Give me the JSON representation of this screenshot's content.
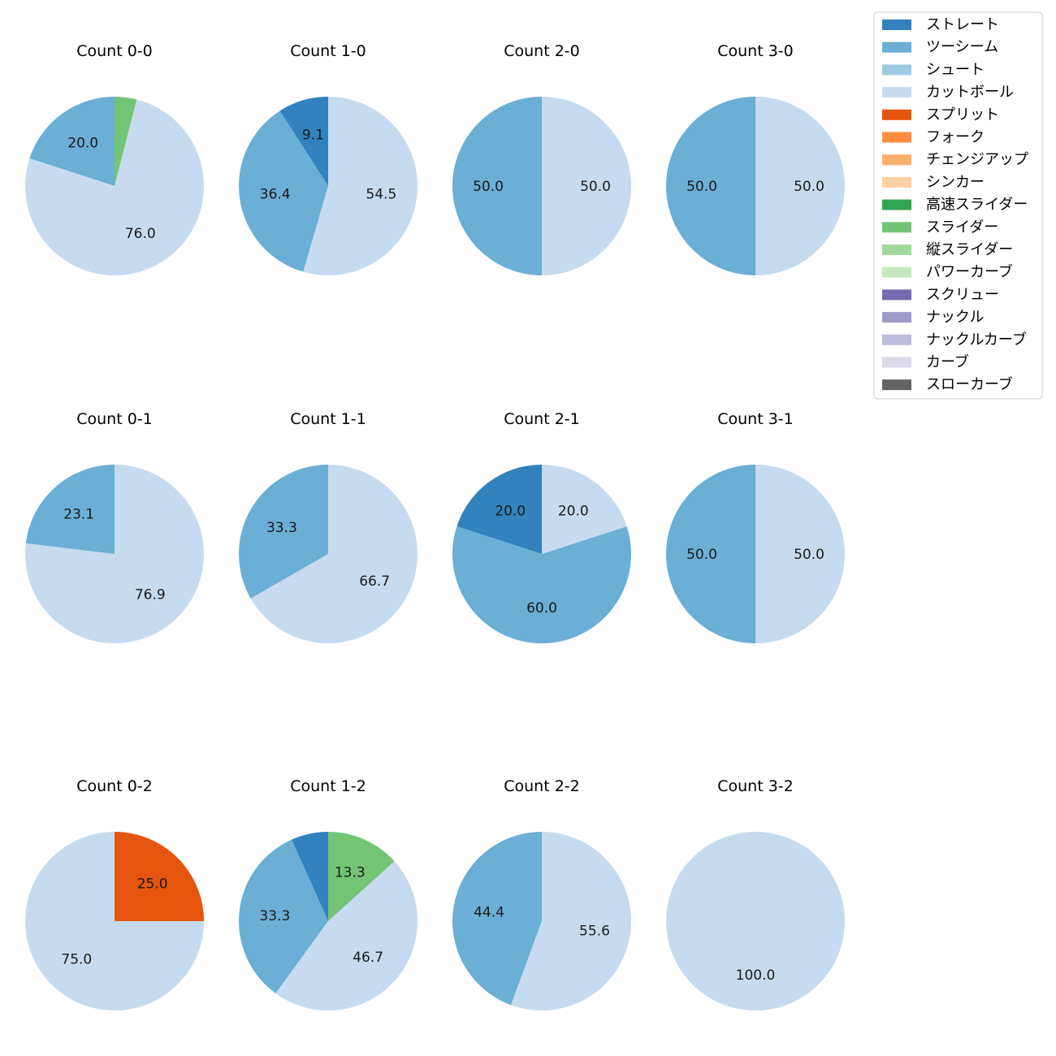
{
  "chart_data": {
    "type": "pie",
    "legend": {
      "placement": "top-right",
      "items": [
        {
          "name": "ストレート",
          "color": "#3182bd"
        },
        {
          "name": "ツーシーム",
          "color": "#6baed6"
        },
        {
          "name": "シュート",
          "color": "#9ecae1"
        },
        {
          "name": "カットボール",
          "color": "#c6dbef"
        },
        {
          "name": "スプリット",
          "color": "#e6550d"
        },
        {
          "name": "フォーク",
          "color": "#fd8d3c"
        },
        {
          "name": "チェンジアップ",
          "color": "#fdae6b"
        },
        {
          "name": "シンカー",
          "color": "#fdd0a2"
        },
        {
          "name": "高速スライダー",
          "color": "#31a354"
        },
        {
          "name": "スライダー",
          "color": "#74c476"
        },
        {
          "name": "縦スライダー",
          "color": "#a1d99b"
        },
        {
          "name": "パワーカーブ",
          "color": "#c7e9c0"
        },
        {
          "name": "スクリュー",
          "color": "#756bb1"
        },
        {
          "name": "ナックル",
          "color": "#9e9ac8"
        },
        {
          "name": "ナックルカーブ",
          "color": "#bcbddc"
        },
        {
          "name": "カーブ",
          "color": "#dadaeb"
        },
        {
          "name": "スローカーブ",
          "color": "#636363"
        }
      ]
    },
    "charts": [
      {
        "title": "Count 0-0",
        "slices": [
          {
            "pitch": "ツーシーム",
            "value": 20.0,
            "label": "20.0"
          },
          {
            "pitch": "カットボール",
            "value": 76.0,
            "label": "76.0"
          },
          {
            "pitch": "スライダー",
            "value": 4.0,
            "label": ""
          }
        ]
      },
      {
        "title": "Count 1-0",
        "slices": [
          {
            "pitch": "ストレート",
            "value": 9.1,
            "label": "9.1"
          },
          {
            "pitch": "ツーシーム",
            "value": 36.4,
            "label": "36.4"
          },
          {
            "pitch": "カットボール",
            "value": 54.5,
            "label": "54.5"
          }
        ]
      },
      {
        "title": "Count 2-0",
        "slices": [
          {
            "pitch": "ツーシーム",
            "value": 50.0,
            "label": "50.0"
          },
          {
            "pitch": "カットボール",
            "value": 50.0,
            "label": "50.0"
          }
        ]
      },
      {
        "title": "Count 3-0",
        "slices": [
          {
            "pitch": "ツーシーム",
            "value": 50.0,
            "label": "50.0"
          },
          {
            "pitch": "カットボール",
            "value": 50.0,
            "label": "50.0"
          }
        ]
      },
      {
        "title": "Count 0-1",
        "slices": [
          {
            "pitch": "ツーシーム",
            "value": 23.1,
            "label": "23.1"
          },
          {
            "pitch": "カットボール",
            "value": 76.9,
            "label": "76.9"
          }
        ]
      },
      {
        "title": "Count 1-1",
        "slices": [
          {
            "pitch": "ツーシーム",
            "value": 33.3,
            "label": "33.3"
          },
          {
            "pitch": "カットボール",
            "value": 66.7,
            "label": "66.7"
          }
        ]
      },
      {
        "title": "Count 2-1",
        "slices": [
          {
            "pitch": "ストレート",
            "value": 20.0,
            "label": "20.0"
          },
          {
            "pitch": "ツーシーム",
            "value": 60.0,
            "label": "60.0"
          },
          {
            "pitch": "カットボール",
            "value": 20.0,
            "label": "20.0"
          }
        ]
      },
      {
        "title": "Count 3-1",
        "slices": [
          {
            "pitch": "ツーシーム",
            "value": 50.0,
            "label": "50.0"
          },
          {
            "pitch": "カットボール",
            "value": 50.0,
            "label": "50.0"
          }
        ]
      },
      {
        "title": "Count 0-2",
        "slices": [
          {
            "pitch": "カットボール",
            "value": 75.0,
            "label": "75.0"
          },
          {
            "pitch": "スプリット",
            "value": 25.0,
            "label": "25.0"
          }
        ]
      },
      {
        "title": "Count 1-2",
        "slices": [
          {
            "pitch": "ストレート",
            "value": 6.7,
            "label": ""
          },
          {
            "pitch": "ツーシーム",
            "value": 33.3,
            "label": "33.3"
          },
          {
            "pitch": "カットボール",
            "value": 46.7,
            "label": "46.7"
          },
          {
            "pitch": "スライダー",
            "value": 13.3,
            "label": "13.3"
          }
        ]
      },
      {
        "title": "Count 2-2",
        "slices": [
          {
            "pitch": "ツーシーム",
            "value": 44.4,
            "label": "44.4"
          },
          {
            "pitch": "カットボール",
            "value": 55.6,
            "label": "55.6"
          }
        ]
      },
      {
        "title": "Count 3-2",
        "slices": [
          {
            "pitch": "カットボール",
            "value": 100.0,
            "label": "100.0"
          }
        ]
      }
    ]
  }
}
